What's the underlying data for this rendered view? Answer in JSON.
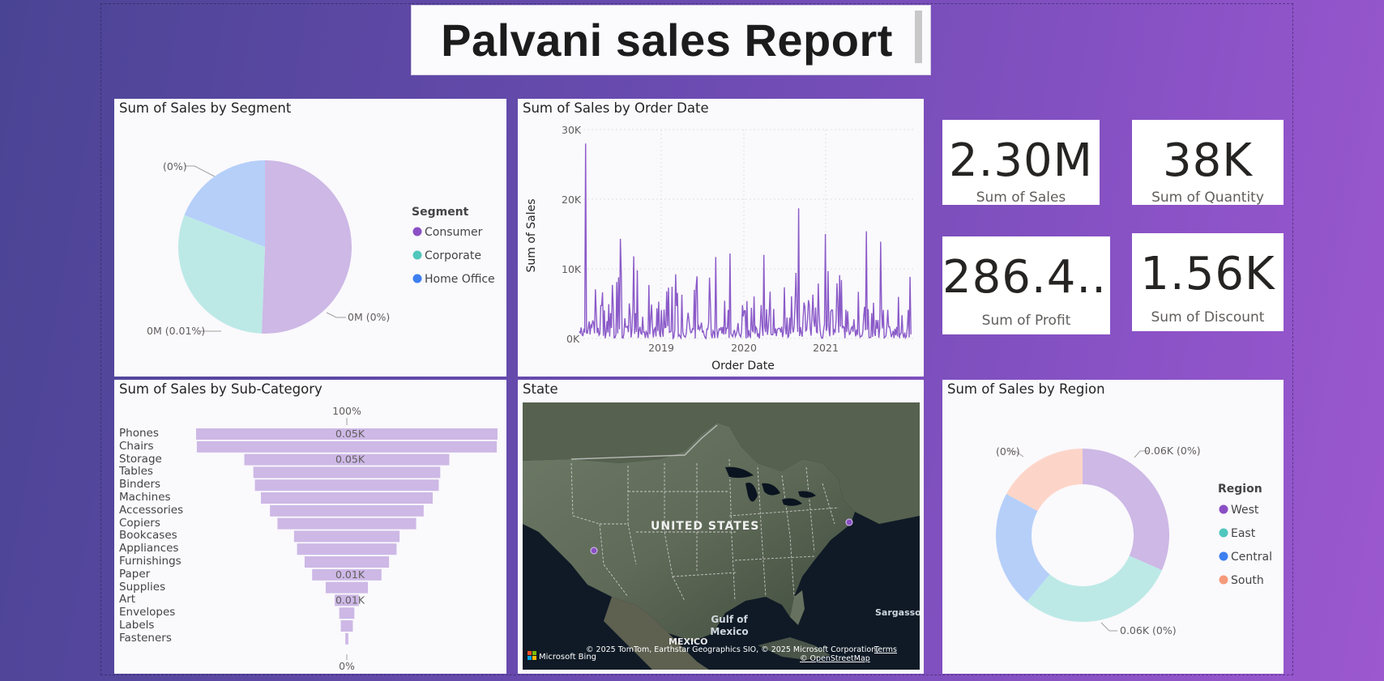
{
  "report": {
    "title": "Palvani sales Report"
  },
  "segment_pie": {
    "title": "Sum of Sales by Segment",
    "legend_title": "Segment",
    "legend": [
      {
        "label": "Consumer",
        "color": "#8a4fc4"
      },
      {
        "label": "Corporate",
        "color": "#4fc7bd"
      },
      {
        "label": "Home Office",
        "color": "#3d7ff0"
      }
    ],
    "labels": [
      "0M (0%)",
      "0M (0.01%)",
      "(0%)"
    ]
  },
  "order_date_line": {
    "title": "Sum of Sales by Order Date",
    "y_ticks": [
      "30K",
      "20K",
      "10K",
      "0K"
    ],
    "x_ticks": [
      "2019",
      "2020",
      "2021"
    ],
    "y_axis_title": "Sum of Sales",
    "x_axis_title": "Order Date"
  },
  "cards": {
    "sales": {
      "value": "2.30M",
      "label": "Sum of Sales"
    },
    "quantity": {
      "value": "38K",
      "label": "Sum of Quantity"
    },
    "profit": {
      "value": "286.4...",
      "label": "Sum of Profit"
    },
    "discount": {
      "value": "1.56K",
      "label": "Sum of Discount"
    }
  },
  "subcategory_funnel": {
    "title": "Sum of Sales by Sub-Category",
    "top_label": "100%",
    "bottom_label": "0%",
    "categories": [
      "Phones",
      "Chairs",
      "Storage",
      "Tables",
      "Binders",
      "Machines",
      "Accessories",
      "Copiers",
      "Bookcases",
      "Appliances",
      "Furnishings",
      "Paper",
      "Supplies",
      "Art",
      "Envelopes",
      "Labels",
      "Fasteners"
    ],
    "bar_labels": [
      "0.05K",
      "",
      "0.05K",
      "",
      "",
      "",
      "",
      "",
      "",
      "",
      "",
      "0.01K",
      "",
      "0.01K",
      "",
      "",
      ""
    ]
  },
  "state_map": {
    "title": "State",
    "country_label": "UNITED STATES",
    "mexico_label": "MEXICO",
    "gulf_label_1": "Gulf of",
    "gulf_label_2": "Mexico",
    "sargasso_label": "Sargasso",
    "attribution": "© 2025 TomTom, Earthstar Geographics SIO, © 2025 Microsoft Corporation,",
    "terms": "Terms",
    "osm": "© OpenStreetMap",
    "bing": "Microsoft Bing"
  },
  "region_donut": {
    "title": "Sum of Sales by Region",
    "legend_title": "Region",
    "legend": [
      {
        "label": "West",
        "color": "#8a4fc4"
      },
      {
        "label": "East",
        "color": "#4fc7bd"
      },
      {
        "label": "Central",
        "color": "#3d7ff0"
      },
      {
        "label": "South",
        "color": "#f59a7a"
      }
    ],
    "labels": [
      "0.06K (0%)",
      "0.06K (0%)",
      "(0%)"
    ]
  },
  "chart_data": [
    {
      "type": "pie",
      "title": "Sum of Sales by Segment",
      "categories": [
        "Consumer",
        "Corporate",
        "Home Office"
      ],
      "values": [
        50.6,
        30.4,
        19.0
      ],
      "colors": [
        "#cdb8e6",
        "#bce9e6",
        "#b5cff9"
      ],
      "legend": "right"
    },
    {
      "type": "line",
      "title": "Sum of Sales by Order Date",
      "xlabel": "Order Date",
      "ylabel": "Sum of Sales",
      "ylim": [
        0,
        30000
      ],
      "x_ticks": [
        "2019",
        "2020",
        "2021"
      ],
      "color": "#8a5ac8",
      "peaks": [
        {
          "x": "2018-02",
          "y": 28000
        },
        {
          "x": "2018-07",
          "y": 14300
        },
        {
          "x": "2018-09",
          "y": 11800
        },
        {
          "x": "2019-09",
          "y": 11700
        },
        {
          "x": "2019-11",
          "y": 12200
        },
        {
          "x": "2020-04",
          "y": 12000
        },
        {
          "x": "2020-09",
          "y": 18700
        },
        {
          "x": "2021-01",
          "y": 15000
        },
        {
          "x": "2021-07",
          "y": 15400
        },
        {
          "x": "2021-09",
          "y": 13900
        }
      ]
    },
    {
      "type": "bar",
      "title": "Sum of Sales by Sub-Category",
      "categories": [
        "Phones",
        "Chairs",
        "Storage",
        "Tables",
        "Binders",
        "Machines",
        "Accessories",
        "Copiers",
        "Bookcases",
        "Appliances",
        "Furnishings",
        "Paper",
        "Supplies",
        "Art",
        "Envelopes",
        "Labels",
        "Fasteners"
      ],
      "values": [
        100,
        99.5,
        68,
        62,
        61,
        57,
        51,
        46,
        35,
        33,
        28,
        23,
        14,
        8,
        5,
        4,
        1
      ],
      "color": "#cdb8e6"
    },
    {
      "type": "pie",
      "title": "Sum of Sales by Region",
      "categories": [
        "West",
        "East",
        "Central",
        "South"
      ],
      "values": [
        31.6,
        29.5,
        21.8,
        17.1
      ],
      "colors": [
        "#cdb8e6",
        "#bce9e6",
        "#b5cff9",
        "#fdd5c8"
      ],
      "legend": "right"
    }
  ]
}
